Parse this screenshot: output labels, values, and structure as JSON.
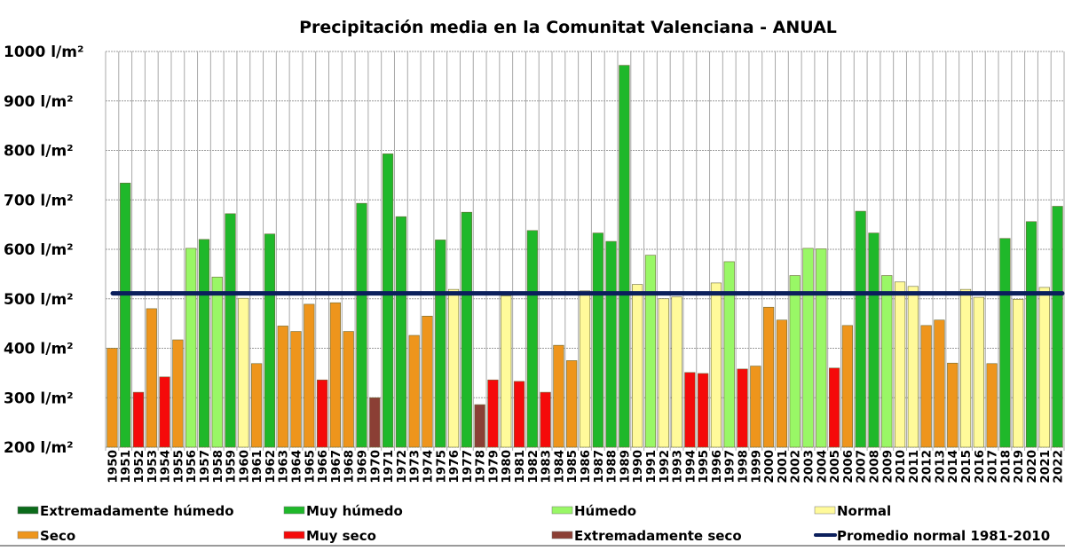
{
  "chart_data": {
    "type": "bar",
    "title": "Precipitación media en la Comunitat Valenciana - ANUAL",
    "xlabel": "",
    "ylabel": "",
    "unit": "l/m²",
    "ylim": [
      200,
      1000
    ],
    "yticks": [
      200,
      300,
      400,
      500,
      600,
      700,
      800,
      900,
      1000
    ],
    "ytick_labels": [
      "200 l/m²",
      "300 l/m²",
      "400 l/m²",
      "500 l/m²",
      "600 l/m²",
      "700 l/m²",
      "800 l/m²",
      "900 l/m²",
      "1000 l/m²"
    ],
    "grid": true,
    "legend_placement": "bottom",
    "classes": {
      "EH": {
        "label": "Extremadamente húmedo",
        "color": "#0b6b1a"
      },
      "MH": {
        "label": "Muy húmedo",
        "color": "#1fb82a"
      },
      "H": {
        "label": "Húmedo",
        "color": "#99f766"
      },
      "N": {
        "label": "Normal",
        "color": "#fffa9a"
      },
      "S": {
        "label": "Seco",
        "color": "#ee951c"
      },
      "MS": {
        "label": "Muy seco",
        "color": "#f50a0a"
      },
      "ES": {
        "label": "Extremadamente seco",
        "color": "#8b3f35"
      }
    },
    "legend_order": [
      "EH",
      "MH",
      "H",
      "N",
      "S",
      "MS",
      "ES"
    ],
    "reference_line": {
      "label": "Promedio normal 1981-2010",
      "value": 511,
      "color": "#0b1f5c"
    },
    "categories": [
      "1950",
      "1951",
      "1952",
      "1953",
      "1954",
      "1955",
      "1956",
      "1957",
      "1958",
      "1959",
      "1960",
      "1961",
      "1962",
      "1963",
      "1964",
      "1965",
      "1966",
      "1967",
      "1968",
      "1969",
      "1970",
      "1971",
      "1972",
      "1973",
      "1974",
      "1975",
      "1976",
      "1977",
      "1978",
      "1979",
      "1980",
      "1981",
      "1982",
      "1983",
      "1984",
      "1985",
      "1986",
      "1987",
      "1988",
      "1989",
      "1990",
      "1991",
      "1992",
      "1993",
      "1994",
      "1995",
      "1996",
      "1997",
      "1998",
      "1999",
      "2000",
      "2001",
      "2002",
      "2003",
      "2004",
      "2005",
      "2006",
      "2007",
      "2008",
      "2009",
      "2010",
      "2011",
      "2012",
      "2013",
      "2014",
      "2015",
      "2016",
      "2017",
      "2018",
      "2019",
      "2020",
      "2021",
      "2022"
    ],
    "values": [
      400,
      734,
      311,
      480,
      342,
      417,
      602,
      620,
      544,
      672,
      501,
      369,
      631,
      445,
      434,
      489,
      336,
      492,
      434,
      693,
      300,
      793,
      666,
      426,
      465,
      619,
      519,
      675,
      286,
      336,
      506,
      333,
      638,
      311,
      406,
      375,
      516,
      633,
      616,
      972,
      529,
      588,
      500,
      504,
      351,
      349,
      532,
      575,
      358,
      364,
      483,
      457,
      547,
      602,
      601,
      360,
      446,
      677,
      633,
      547,
      534,
      525,
      446,
      457,
      370,
      519,
      503,
      369,
      622,
      499,
      656,
      523,
      687
    ],
    "value_classes": [
      "S",
      "MH",
      "MS",
      "S",
      "MS",
      "S",
      "H",
      "MH",
      "H",
      "MH",
      "N",
      "S",
      "MH",
      "S",
      "S",
      "S",
      "MS",
      "S",
      "S",
      "MH",
      "ES",
      "MH",
      "MH",
      "S",
      "S",
      "MH",
      "N",
      "MH",
      "ES",
      "MS",
      "N",
      "MS",
      "MH",
      "MS",
      "S",
      "S",
      "N",
      "MH",
      "MH",
      "MH",
      "N",
      "H",
      "N",
      "N",
      "MS",
      "MS",
      "N",
      "H",
      "MS",
      "S",
      "S",
      "S",
      "H",
      "H",
      "H",
      "MS",
      "S",
      "MH",
      "MH",
      "H",
      "N",
      "N",
      "S",
      "S",
      "S",
      "N",
      "N",
      "S",
      "MH",
      "N",
      "MH",
      "N",
      "MH"
    ]
  }
}
